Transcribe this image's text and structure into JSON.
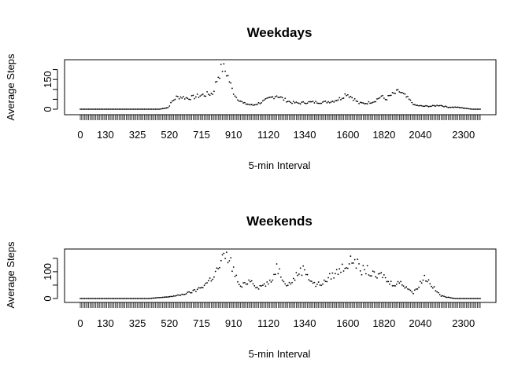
{
  "chart_data": [
    {
      "type": "scatter",
      "title": "Weekdays",
      "xlabel": "5-min Interval",
      "ylabel": "Average Steps",
      "yticks": [
        0,
        50,
        100,
        150,
        200
      ],
      "ytick_labels": [
        "0",
        "",
        "",
        "150",
        ""
      ],
      "xtick_labels": [
        "0",
        "130",
        "325",
        "520",
        "715",
        "910",
        "1120",
        "1340",
        "1600",
        "1820",
        "2040",
        "2300"
      ],
      "xtick_positions": [
        1,
        19,
        42,
        65,
        88,
        111,
        136,
        162,
        193,
        219,
        245,
        276
      ],
      "xlim": [
        1,
        288
      ],
      "ylim": [
        0,
        230
      ],
      "grid": false,
      "keypoints": [
        [
          1,
          0
        ],
        [
          58,
          0
        ],
        [
          60,
          3
        ],
        [
          64,
          8
        ],
        [
          67,
          40
        ],
        [
          70,
          60
        ],
        [
          74,
          62
        ],
        [
          78,
          55
        ],
        [
          82,
          60
        ],
        [
          88,
          70
        ],
        [
          96,
          80
        ],
        [
          100,
          170
        ],
        [
          103,
          210
        ],
        [
          106,
          185
        ],
        [
          110,
          100
        ],
        [
          113,
          60
        ],
        [
          118,
          30
        ],
        [
          125,
          20
        ],
        [
          131,
          35
        ],
        [
          137,
          55
        ],
        [
          142,
          70
        ],
        [
          147,
          50
        ],
        [
          152,
          35
        ],
        [
          158,
          30
        ],
        [
          164,
          35
        ],
        [
          170,
          35
        ],
        [
          176,
          35
        ],
        [
          182,
          40
        ],
        [
          188,
          55
        ],
        [
          192,
          80
        ],
        [
          196,
          60
        ],
        [
          201,
          30
        ],
        [
          206,
          30
        ],
        [
          212,
          40
        ],
        [
          217,
          65
        ],
        [
          220,
          50
        ],
        [
          224,
          70
        ],
        [
          230,
          90
        ],
        [
          236,
          55
        ],
        [
          241,
          20
        ],
        [
          247,
          15
        ],
        [
          253,
          15
        ],
        [
          259,
          20
        ],
        [
          265,
          10
        ],
        [
          271,
          10
        ],
        [
          277,
          5
        ],
        [
          282,
          0
        ],
        [
          288,
          0
        ]
      ]
    },
    {
      "type": "scatter",
      "title": "Weekends",
      "xlabel": "5-min Interval",
      "ylabel": "Average Steps",
      "yticks": [
        0,
        50,
        100,
        150
      ],
      "ytick_labels": [
        "0",
        "",
        "100",
        ""
      ],
      "xtick_labels": [
        "0",
        "130",
        "325",
        "520",
        "715",
        "910",
        "1120",
        "1340",
        "1600",
        "1820",
        "2040",
        "2300"
      ],
      "xtick_positions": [
        1,
        19,
        42,
        65,
        88,
        111,
        136,
        162,
        193,
        219,
        245,
        276
      ],
      "xlim": [
        1,
        288
      ],
      "ylim": [
        0,
        170
      ],
      "grid": false,
      "keypoints": [
        [
          1,
          0
        ],
        [
          50,
          0
        ],
        [
          62,
          5
        ],
        [
          70,
          10
        ],
        [
          78,
          20
        ],
        [
          84,
          30
        ],
        [
          90,
          50
        ],
        [
          96,
          80
        ],
        [
          101,
          120
        ],
        [
          104,
          155
        ],
        [
          108,
          150
        ],
        [
          112,
          90
        ],
        [
          116,
          40
        ],
        [
          120,
          60
        ],
        [
          124,
          70
        ],
        [
          128,
          40
        ],
        [
          132,
          50
        ],
        [
          138,
          60
        ],
        [
          142,
          120
        ],
        [
          146,
          80
        ],
        [
          150,
          50
        ],
        [
          154,
          70
        ],
        [
          158,
          100
        ],
        [
          162,
          110
        ],
        [
          166,
          70
        ],
        [
          170,
          50
        ],
        [
          176,
          60
        ],
        [
          180,
          80
        ],
        [
          186,
          100
        ],
        [
          190,
          120
        ],
        [
          194,
          130
        ],
        [
          198,
          150
        ],
        [
          202,
          100
        ],
        [
          206,
          110
        ],
        [
          210,
          90
        ],
        [
          214,
          80
        ],
        [
          218,
          90
        ],
        [
          222,
          60
        ],
        [
          226,
          55
        ],
        [
          230,
          60
        ],
        [
          236,
          40
        ],
        [
          240,
          20
        ],
        [
          244,
          50
        ],
        [
          248,
          80
        ],
        [
          252,
          60
        ],
        [
          256,
          30
        ],
        [
          260,
          10
        ],
        [
          264,
          5
        ],
        [
          270,
          0
        ],
        [
          288,
          0
        ]
      ]
    }
  ]
}
